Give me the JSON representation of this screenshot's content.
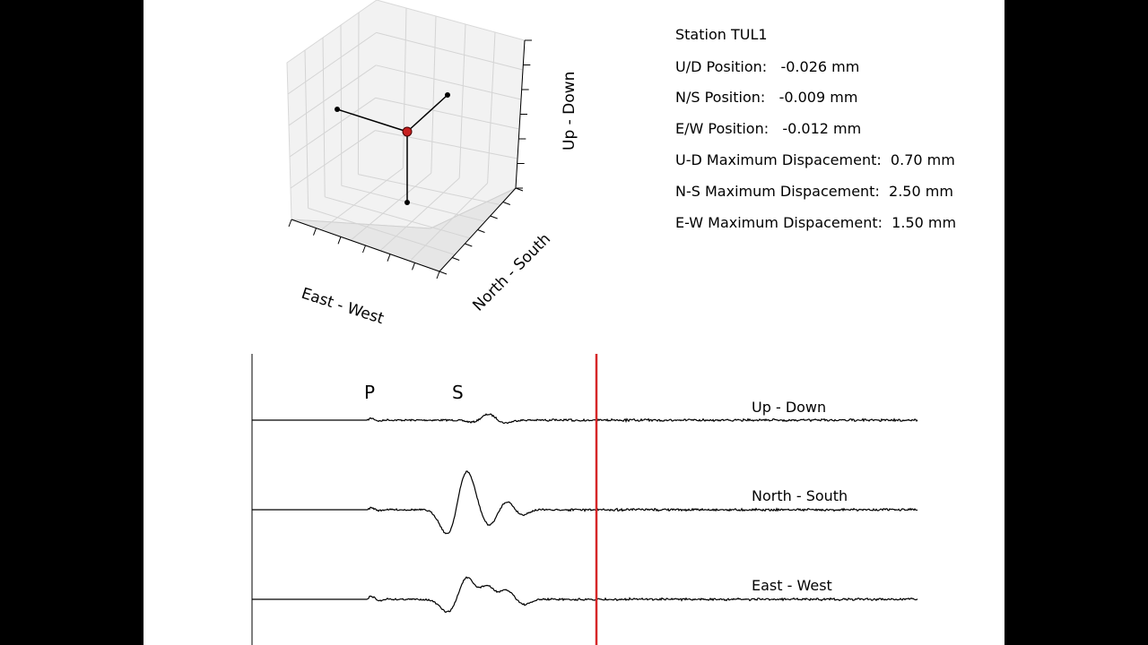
{
  "station": {
    "title": "Station TUL1",
    "ud_position_label": "U/D Position:",
    "ud_position_value": "-0.026 mm",
    "ns_position_label": "N/S Position:",
    "ns_position_value": "-0.009 mm",
    "ew_position_label": "E/W Position:",
    "ew_position_value": "-0.012 mm",
    "ud_max_label": "U-D Maximum Dispacement:",
    "ud_max_value": "0.70 mm",
    "ns_max_label": "N-S Maximum Dispacement:",
    "ns_max_value": "2.50 mm",
    "ew_max_label": "E-W Maximum Dispacement:",
    "ew_max_value": "1.50 mm"
  },
  "plot3d": {
    "x_axis_label": "East - West",
    "y_axis_label": "North - South",
    "z_axis_label": "Up - Down"
  },
  "seismogram": {
    "p_marker": "P",
    "s_marker": "S",
    "traces": [
      {
        "name": "Up - Down"
      },
      {
        "name": "North - South"
      },
      {
        "name": "East - West"
      }
    ],
    "cursor_color": "#d62728"
  },
  "colors": {
    "marker": "#c62020",
    "frame_bg": "#ffffff",
    "outer_bg": "#000000"
  }
}
